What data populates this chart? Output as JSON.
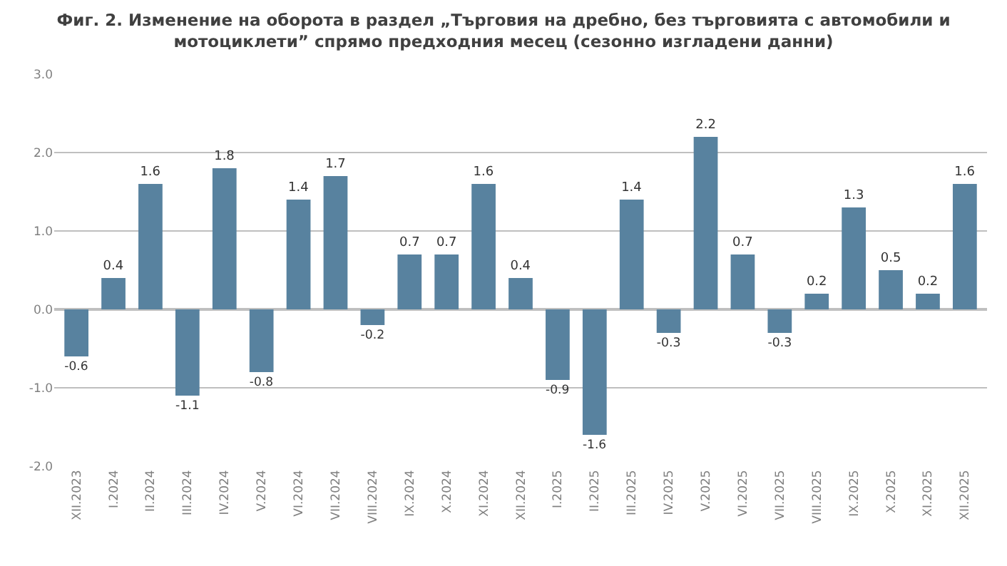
{
  "chart_data": {
    "type": "bar",
    "title": "Фиг. 2. Изменение на оборота в раздел „Търговия на дребно, без търговията с автомобили и мотоциклети” спрямо предходния месец (сезонно изгладени данни)",
    "categories": [
      "XII.2023",
      "I.2024",
      "II.2024",
      "III.2024",
      "IV.2024",
      "V.2024",
      "VI.2024",
      "VII.2024",
      "VIII.2024",
      "IX.2024",
      "X.2024",
      "XI.2024",
      "XII.2024",
      "I.2025",
      "II.2025",
      "III.2025",
      "IV.2025",
      "V.2025",
      "VI.2025",
      "VII.2025",
      "VIII.2025",
      "IX.2025",
      "X.2025",
      "XI.2025",
      "XII.2025"
    ],
    "values": [
      -0.6,
      0.4,
      1.6,
      -1.1,
      1.8,
      -0.8,
      1.4,
      1.7,
      -0.2,
      0.7,
      0.7,
      1.6,
      0.4,
      -0.9,
      -1.6,
      1.4,
      -0.3,
      2.2,
      0.7,
      -0.3,
      0.2,
      1.3,
      0.5,
      0.2,
      1.6
    ],
    "color": "#58829f",
    "ylim": [
      -2,
      3
    ],
    "yticks": [
      {
        "value": -2,
        "label": "-2.0"
      },
      {
        "value": -1,
        "label": "-1.0"
      },
      {
        "value": 0,
        "label": "0.0"
      },
      {
        "value": 1,
        "label": "1.0"
      },
      {
        "value": 2,
        "label": "2.0"
      },
      {
        "value": 3,
        "label": "3.0"
      }
    ],
    "grid": "y",
    "data_labels": true
  }
}
